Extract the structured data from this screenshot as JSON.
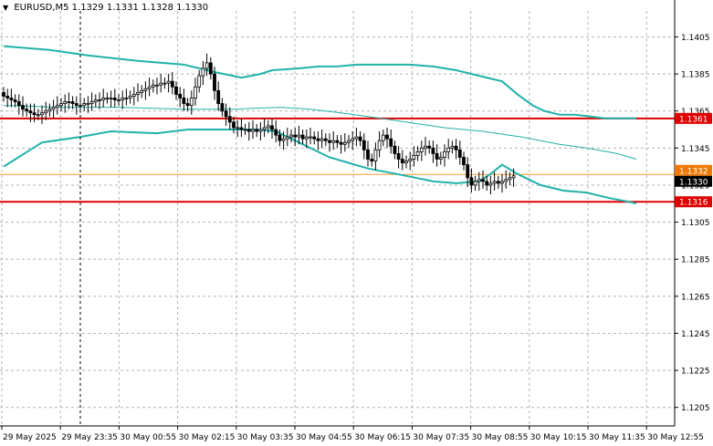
{
  "header": {
    "symbol": "EURUSD,M5",
    "ohlc": "1.1329 1.1331 1.1328 1.1330"
  },
  "colors": {
    "background": "#ffffff",
    "grid": "#b4b4b4",
    "candle": "#000000",
    "bollinger": "#20b2aa",
    "level_line": "#e00000",
    "current_price_line": "#ff9933",
    "current_tag": "#f07800"
  },
  "chart_data": {
    "type": "candlestick",
    "title": "EURUSD,M5",
    "y_range": [
      1.1195,
      1.1419
    ],
    "y_ticks": [
      "1.1405",
      "1.1385",
      "1.1365",
      "1.1345",
      "1.1325",
      "1.1305",
      "1.1285",
      "1.1265",
      "1.1245",
      "1.1225",
      "1.1205"
    ],
    "x_ticks": [
      "29 May 2025",
      "29 May 23:35",
      "30 May 00:55",
      "30 May 02:15",
      "30 May 03:35",
      "30 May 04:55",
      "30 May 06:15",
      "30 May 07:35",
      "30 May 08:55",
      "30 May 10:15",
      "30 May 11:35",
      "30 May 12:55"
    ],
    "grid": true,
    "levels": [
      {
        "label": "1.1361",
        "value": 1.1361
      },
      {
        "label": "1.1316",
        "value": 1.1316
      }
    ],
    "current_price": {
      "label": "1.1330",
      "value": 1.133
    },
    "bid_label": "1.1332",
    "closes": [
      1.1373,
      1.1372,
      1.1371,
      1.137,
      1.1368,
      1.1366,
      1.1365,
      1.1364,
      1.1363,
      1.1363,
      1.1364,
      1.1365,
      1.1366,
      1.1367,
      1.1368,
      1.1369,
      1.137,
      1.137,
      1.1369,
      1.1368,
      1.1368,
      1.1369,
      1.1369,
      1.137,
      1.1371,
      1.1371,
      1.1372,
      1.1372,
      1.1372,
      1.1371,
      1.1371,
      1.1372,
      1.1372,
      1.1373,
      1.1374,
      1.1375,
      1.1376,
      1.1377,
      1.1378,
      1.1379,
      1.1379,
      1.138,
      1.138,
      1.1381,
      1.1378,
      1.1374,
      1.1372,
      1.1369,
      1.1368,
      1.1372,
      1.1378,
      1.1384,
      1.1388,
      1.1391,
      1.1385,
      1.1376,
      1.1369,
      1.1365,
      1.1362,
      1.1359,
      1.1356,
      1.1356,
      1.1355,
      1.1355,
      1.1354,
      1.1355,
      1.1354,
      1.1355,
      1.1356,
      1.1357,
      1.1355,
      1.1352,
      1.1349,
      1.135,
      1.1351,
      1.1352,
      1.1351,
      1.1352,
      1.135,
      1.1351,
      1.1351,
      1.135,
      1.1349,
      1.135,
      1.1349,
      1.1348,
      1.1349,
      1.1348,
      1.1347,
      1.1348,
      1.1349,
      1.135,
      1.1351,
      1.1349,
      1.1344,
      1.1339,
      1.1338,
      1.1344,
      1.1349,
      1.1352,
      1.135,
      1.1346,
      1.1342,
      1.1339,
      1.1337,
      1.1338,
      1.1339,
      1.1341,
      1.1343,
      1.1345,
      1.1346,
      1.1345,
      1.1342,
      1.1339,
      1.134,
      1.1343,
      1.1345,
      1.1346,
      1.1344,
      1.134,
      1.1336,
      1.1329,
      1.1325,
      1.1327,
      1.1328,
      1.1327,
      1.1325,
      1.1326,
      1.1327,
      1.1326,
      1.1327,
      1.1328,
      1.1329,
      1.133
    ],
    "bb_upper": [
      [
        0,
        1.14
      ],
      [
        12,
        1.1398
      ],
      [
        22,
        1.1395
      ],
      [
        35,
        1.1392
      ],
      [
        47,
        1.139
      ],
      [
        55,
        1.1386
      ],
      [
        62,
        1.1383
      ],
      [
        67,
        1.1385
      ],
      [
        70,
        1.1387
      ],
      [
        77,
        1.1388
      ],
      [
        82,
        1.1389
      ],
      [
        87,
        1.1389
      ],
      [
        92,
        1.139
      ],
      [
        98,
        1.139
      ],
      [
        106,
        1.139
      ],
      [
        112,
        1.1389
      ],
      [
        118,
        1.1387
      ],
      [
        124,
        1.1384
      ],
      [
        130,
        1.1381
      ],
      [
        134,
        1.1374
      ],
      [
        138,
        1.1368
      ],
      [
        141,
        1.1365
      ],
      [
        145,
        1.1363
      ],
      [
        149,
        1.1363
      ],
      [
        153,
        1.1362
      ],
      [
        157,
        1.1361
      ],
      [
        162,
        1.1361
      ],
      [
        165,
        1.1361
      ]
    ],
    "bb_middle": [
      [
        0,
        1.1368
      ],
      [
        15,
        1.1367
      ],
      [
        30,
        1.1367
      ],
      [
        47,
        1.1366
      ],
      [
        60,
        1.1366
      ],
      [
        72,
        1.1367
      ],
      [
        80,
        1.1366
      ],
      [
        88,
        1.1364
      ],
      [
        95,
        1.1362
      ],
      [
        105,
        1.1359
      ],
      [
        115,
        1.1356
      ],
      [
        125,
        1.1354
      ],
      [
        135,
        1.1351
      ],
      [
        145,
        1.1347
      ],
      [
        152,
        1.1345
      ],
      [
        160,
        1.1342
      ],
      [
        165,
        1.1339
      ]
    ],
    "bb_lower": [
      [
        0,
        1.1335
      ],
      [
        10,
        1.1348
      ],
      [
        20,
        1.1351
      ],
      [
        28,
        1.1354
      ],
      [
        40,
        1.1353
      ],
      [
        48,
        1.1355
      ],
      [
        58,
        1.1355
      ],
      [
        66,
        1.1355
      ],
      [
        71,
        1.1354
      ],
      [
        77,
        1.1348
      ],
      [
        85,
        1.134
      ],
      [
        95,
        1.1334
      ],
      [
        105,
        1.133
      ],
      [
        112,
        1.1327
      ],
      [
        118,
        1.1326
      ],
      [
        124,
        1.1327
      ],
      [
        127,
        1.1331
      ],
      [
        130,
        1.1336
      ],
      [
        134,
        1.1331
      ],
      [
        140,
        1.1325
      ],
      [
        146,
        1.1322
      ],
      [
        152,
        1.1321
      ],
      [
        158,
        1.1318
      ],
      [
        163,
        1.1316
      ],
      [
        165,
        1.1315
      ]
    ]
  }
}
